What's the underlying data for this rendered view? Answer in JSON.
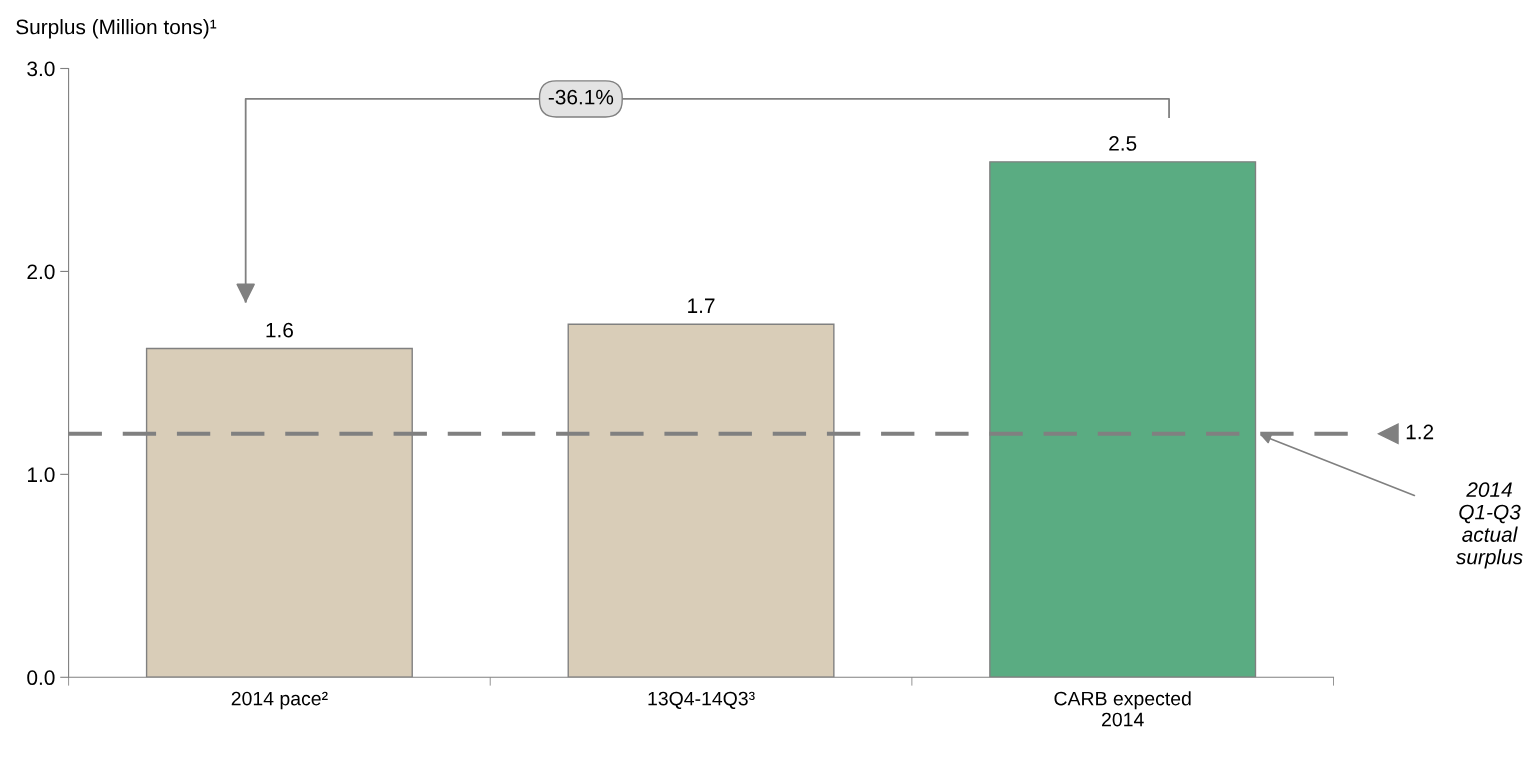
{
  "chart_data": {
    "type": "bar",
    "ylabel": "Surplus (Million tons)¹",
    "categories": [
      "2014 pace²",
      "13Q4-14Q3³",
      "CARB expected\n2014"
    ],
    "values": [
      1.62,
      1.74,
      2.54
    ],
    "value_labels": [
      "1.6",
      "1.7",
      "2.5"
    ],
    "colors": [
      "#d9cdb8",
      "#d9cdb8",
      "#5aac82"
    ],
    "ylim": [
      0,
      3
    ],
    "yticks": [
      {
        "value": 0,
        "label": "0.0"
      },
      {
        "value": 1,
        "label": "1.0"
      },
      {
        "value": 2,
        "label": "2.0"
      },
      {
        "value": 3,
        "label": "3.0"
      }
    ],
    "ref_lines": [
      {
        "axis": "y",
        "value": 1.2,
        "label": "1.2",
        "color": "#808080",
        "line_style": "dashed"
      }
    ],
    "annotations": [
      "-36.1%",
      "2014 Q1-Q3 actual surplus"
    ],
    "grid": false
  }
}
